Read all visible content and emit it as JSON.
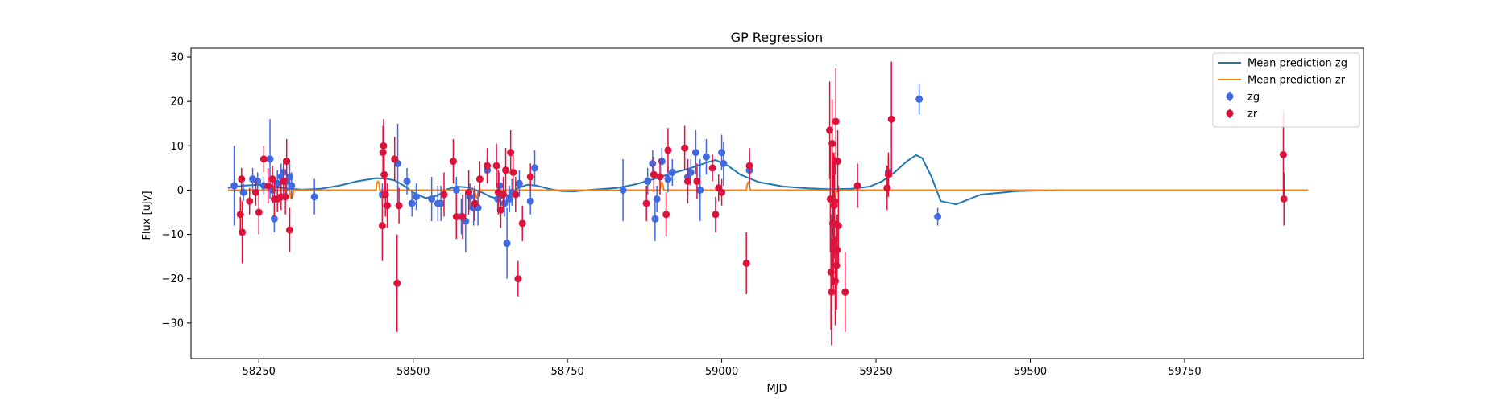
{
  "chart_data": {
    "type": "scatter",
    "title": "GP Regression",
    "xlabel": "MJD",
    "ylabel": "Flux [uJy]",
    "xlim": [
      58140,
      60040
    ],
    "ylim": [
      -38,
      32
    ],
    "xticks": [
      58250,
      58500,
      58750,
      59000,
      59250,
      59500,
      59750
    ],
    "yticks": [
      -30,
      -20,
      -10,
      0,
      10,
      20,
      30
    ],
    "legend_position": "top-right",
    "colors": {
      "zg": "#4169e1",
      "zr": "#dc143c",
      "mean_zg": "#1f77b4",
      "mean_zr": "#ff7f0e"
    },
    "legend": [
      {
        "label": "Mean prediction zg",
        "kind": "line",
        "color_key": "mean_zg"
      },
      {
        "label": "Mean prediction zr",
        "kind": "line",
        "color_key": "mean_zr"
      },
      {
        "label": "zg",
        "kind": "point",
        "color_key": "zg"
      },
      {
        "label": "zr",
        "kind": "point",
        "color_key": "zr"
      }
    ],
    "series": [
      {
        "name": "Mean prediction zg",
        "kind": "line",
        "color_key": "mean_zg",
        "x": [
          58200,
          58225,
          58250,
          58265,
          58280,
          58300,
          58320,
          58350,
          58380,
          58410,
          58440,
          58455,
          58470,
          58485,
          58500,
          58520,
          58540,
          58555,
          58570,
          58590,
          58610,
          58625,
          58640,
          58655,
          58670,
          58685,
          58700,
          58720,
          58740,
          58760,
          58780,
          58800,
          58830,
          58860,
          58890,
          58920,
          58950,
          58975,
          58990,
          59010,
          59030,
          59060,
          59100,
          59140,
          59180,
          59210,
          59240,
          59260,
          59280,
          59300,
          59315,
          59325,
          59340,
          59355,
          59380,
          59420,
          59480,
          59550,
          59650,
          59800,
          59910,
          59950
        ],
        "y": [
          0.5,
          1.0,
          1.2,
          1.0,
          0.6,
          0.3,
          0.1,
          0.3,
          1.0,
          2.0,
          2.7,
          2.6,
          2.2,
          1.0,
          -0.5,
          -1.8,
          -1.2,
          0.2,
          0.8,
          0.6,
          -0.4,
          -1.5,
          -2.0,
          -1.0,
          0.5,
          1.2,
          1.0,
          0.3,
          -0.2,
          -0.3,
          0.0,
          0.2,
          0.5,
          1.3,
          2.5,
          3.8,
          5.0,
          6.2,
          6.8,
          5.5,
          3.5,
          1.8,
          0.8,
          0.4,
          0.2,
          0.3,
          0.8,
          2.0,
          4.0,
          6.5,
          7.9,
          7.2,
          3.0,
          -2.5,
          -3.2,
          -1.0,
          -0.2,
          0.0,
          0.0,
          0.0,
          0.0,
          0.0
        ]
      },
      {
        "name": "Mean prediction zr",
        "kind": "line",
        "color_key": "mean_zr",
        "x": [
          58200,
          58300,
          58301,
          58303,
          58305,
          58306,
          58440,
          58441,
          58443,
          58445,
          58446,
          58600,
          58601,
          58603,
          58605,
          58606,
          58900,
          58901,
          58903,
          58905,
          58906,
          59040,
          59041,
          59043,
          59045,
          59046,
          59180,
          59181,
          59183,
          59185,
          59186,
          59950
        ],
        "y": [
          0.0,
          0.0,
          -1.5,
          -2.0,
          -1.2,
          0.0,
          0.0,
          1.5,
          2.0,
          1.3,
          0.0,
          0.0,
          -1.2,
          -1.8,
          -1.0,
          0.0,
          0.0,
          1.2,
          1.8,
          1.0,
          0.0,
          0.0,
          1.2,
          1.8,
          1.0,
          0.0,
          0.0,
          -1.5,
          -2.0,
          -1.2,
          0.0,
          0.0
        ]
      },
      {
        "name": "zg",
        "kind": "errorbar",
        "color_key": "zg",
        "points": [
          [
            58210,
            1,
            9
          ],
          [
            58225,
            -0.5,
            2
          ],
          [
            58240,
            2.5,
            2.5
          ],
          [
            58248,
            2,
            2
          ],
          [
            58258,
            1,
            2
          ],
          [
            58268,
            7,
            9
          ],
          [
            58272,
            0,
            3
          ],
          [
            58275,
            -6.5,
            3
          ],
          [
            58280,
            1.5,
            3
          ],
          [
            58286,
            3,
            3
          ],
          [
            58290,
            4,
            3
          ],
          [
            58295,
            2,
            3
          ],
          [
            58300,
            3,
            3
          ],
          [
            58303,
            1,
            3
          ],
          [
            58340,
            -1.5,
            4
          ],
          [
            58450,
            -1,
            2.5
          ],
          [
            58475,
            6,
            9
          ],
          [
            58490,
            2,
            3
          ],
          [
            58498,
            -3,
            3
          ],
          [
            58505,
            -1.5,
            3
          ],
          [
            58530,
            -2,
            5
          ],
          [
            58540,
            -3,
            4
          ],
          [
            58545,
            -3,
            4
          ],
          [
            58570,
            0,
            3
          ],
          [
            58578,
            -6,
            4
          ],
          [
            58585,
            -7,
            7
          ],
          [
            58592,
            -1.5,
            3
          ],
          [
            58598,
            -4,
            4
          ],
          [
            58605,
            -4,
            4
          ],
          [
            58620,
            4.5,
            3
          ],
          [
            58637,
            -2,
            3
          ],
          [
            58640,
            1,
            3
          ],
          [
            58648,
            -3,
            3
          ],
          [
            58652,
            -12,
            8
          ],
          [
            58656,
            -2,
            3
          ],
          [
            58660,
            -0.5,
            3
          ],
          [
            58672,
            1.5,
            3
          ],
          [
            58690,
            -2.5,
            3
          ],
          [
            58697,
            5,
            4
          ],
          [
            58840,
            0,
            7
          ],
          [
            58880,
            2,
            3
          ],
          [
            58888,
            6,
            3
          ],
          [
            58892,
            -6.5,
            5
          ],
          [
            58895,
            -2,
            3
          ],
          [
            58903,
            6.5,
            3
          ],
          [
            58913,
            2.5,
            3
          ],
          [
            58920,
            4,
            3
          ],
          [
            58945,
            3,
            4
          ],
          [
            58950,
            4,
            3
          ],
          [
            58958,
            8.5,
            5
          ],
          [
            58965,
            0,
            7
          ],
          [
            58975,
            7.5,
            4
          ],
          [
            59000,
            8.5,
            4
          ],
          [
            59003,
            6,
            5
          ],
          [
            59045,
            4.5,
            4
          ],
          [
            59270,
            4,
            3
          ],
          [
            59320,
            20.5,
            3.5
          ],
          [
            59350,
            -6,
            2
          ]
        ]
      },
      {
        "name": "zr",
        "kind": "errorbar",
        "color_key": "zr",
        "points": [
          [
            58220,
            -5.5,
            4
          ],
          [
            58222,
            2.5,
            2.5
          ],
          [
            58223,
            -9.5,
            7
          ],
          [
            58235,
            -2.5,
            3
          ],
          [
            58245,
            -0.5,
            3
          ],
          [
            58250,
            -5,
            5
          ],
          [
            58258,
            7,
            3
          ],
          [
            58265,
            1,
            4
          ],
          [
            58272,
            2.5,
            3
          ],
          [
            58275,
            -2,
            4
          ],
          [
            58280,
            -2,
            3
          ],
          [
            58286,
            -1.5,
            3
          ],
          [
            58290,
            2,
            4
          ],
          [
            58293,
            -1.5,
            4
          ],
          [
            58295,
            6.5,
            5
          ],
          [
            58300,
            -9,
            5
          ],
          [
            58450,
            -8,
            8
          ],
          [
            58451,
            8.5,
            6
          ],
          [
            58452,
            10,
            6
          ],
          [
            58453,
            3.5,
            5
          ],
          [
            58455,
            -1,
            5
          ],
          [
            58458,
            -3.5,
            5
          ],
          [
            58470,
            7,
            5
          ],
          [
            58474,
            -21,
            11
          ],
          [
            58477,
            -3.5,
            4
          ],
          [
            58550,
            -1,
            5
          ],
          [
            58565,
            6.5,
            5
          ],
          [
            58570,
            -6,
            5
          ],
          [
            58580,
            -6,
            5
          ],
          [
            58590,
            -0.5,
            5
          ],
          [
            58600,
            -3,
            4
          ],
          [
            58608,
            2.5,
            4
          ],
          [
            58620,
            5.5,
            4
          ],
          [
            58635,
            5.5,
            5
          ],
          [
            58638,
            -0.5,
            5
          ],
          [
            58642,
            -4.5,
            4
          ],
          [
            58646,
            -1,
            4
          ],
          [
            58650,
            4.5,
            5
          ],
          [
            58658,
            8.5,
            5
          ],
          [
            58662,
            4,
            4
          ],
          [
            58666,
            -1,
            4
          ],
          [
            58670,
            -20,
            4
          ],
          [
            58677,
            -7.5,
            4
          ],
          [
            58690,
            3,
            3
          ],
          [
            58878,
            -3,
            4
          ],
          [
            58890,
            3.5,
            4
          ],
          [
            58900,
            3,
            4
          ],
          [
            58910,
            -5.5,
            5
          ],
          [
            58913,
            9,
            5
          ],
          [
            58940,
            9.5,
            5
          ],
          [
            58945,
            2,
            5
          ],
          [
            58960,
            2,
            4
          ],
          [
            58985,
            5,
            3
          ],
          [
            58990,
            -5.5,
            4
          ],
          [
            58995,
            0.5,
            3
          ],
          [
            59000,
            -0.5,
            3
          ],
          [
            59040,
            -16.5,
            7
          ],
          [
            59045,
            5.5,
            4
          ],
          [
            59175,
            13.5,
            11
          ],
          [
            59176,
            -2,
            12
          ],
          [
            59177,
            -18.5,
            13
          ],
          [
            59178,
            -23,
            12
          ],
          [
            59179,
            10.5,
            10
          ],
          [
            59180,
            -7.5,
            14
          ],
          [
            59181,
            -7.5,
            16
          ],
          [
            59182,
            -3.5,
            12
          ],
          [
            59183,
            -2.5,
            10
          ],
          [
            59184,
            -20.5,
            10
          ],
          [
            59185,
            15.5,
            12
          ],
          [
            59186,
            -17,
            10
          ],
          [
            59187,
            -13.5,
            8
          ],
          [
            59188,
            6.5,
            7
          ],
          [
            59189,
            -8,
            9
          ],
          [
            59200,
            -23,
            9
          ],
          [
            59220,
            1,
            5
          ],
          [
            59268,
            0.5,
            5
          ],
          [
            59270,
            3.5,
            5
          ],
          [
            59275,
            16,
            13
          ],
          [
            59910,
            8,
            10
          ],
          [
            59911,
            -2,
            6
          ]
        ]
      }
    ]
  }
}
